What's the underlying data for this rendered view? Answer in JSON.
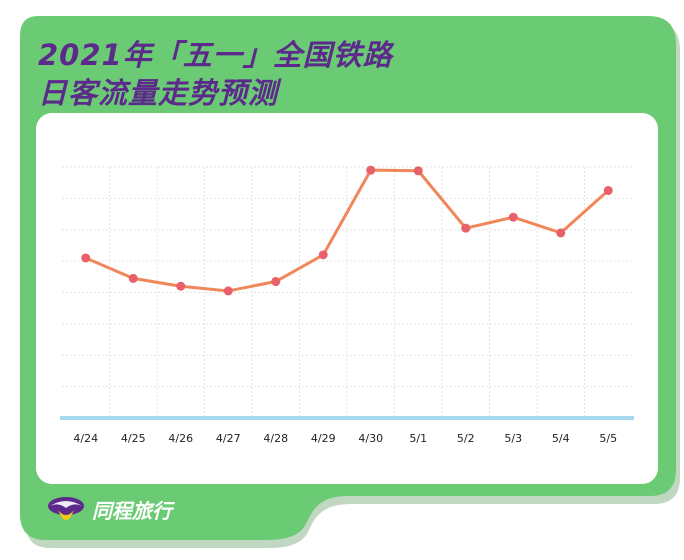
{
  "header": {
    "title_line_1": "2021年「五一」全国铁路",
    "title_line_2": "日客流量走势预测"
  },
  "brand": {
    "name": "同程旅行",
    "logo_icon": "swallow-logo-icon"
  },
  "colors": {
    "background_green": "#6bcb74",
    "title_purple": "#5b2a8a",
    "line": "#f0875a",
    "marker": "#e8606a",
    "baseline": "#a8d8ee",
    "grid": "#e3e3e3"
  },
  "chart_data": {
    "type": "line",
    "title": "2021年「五一」全国铁路日客流量走势预测",
    "xlabel": "",
    "ylabel": "",
    "categories": [
      "4/24",
      "4/25",
      "4/26",
      "4/27",
      "4/28",
      "4/29",
      "4/30",
      "5/1",
      "5/2",
      "5/3",
      "5/4",
      "5/5"
    ],
    "series": [
      {
        "values": [
          5.1,
          4.45,
          4.2,
          4.05,
          4.35,
          5.2,
          7.9,
          7.88,
          6.05,
          6.4,
          5.9,
          7.25
        ]
      }
    ],
    "ylim": [
      0,
      8
    ],
    "grid": true,
    "y_tick_labels_shown": false,
    "legend": "none"
  }
}
